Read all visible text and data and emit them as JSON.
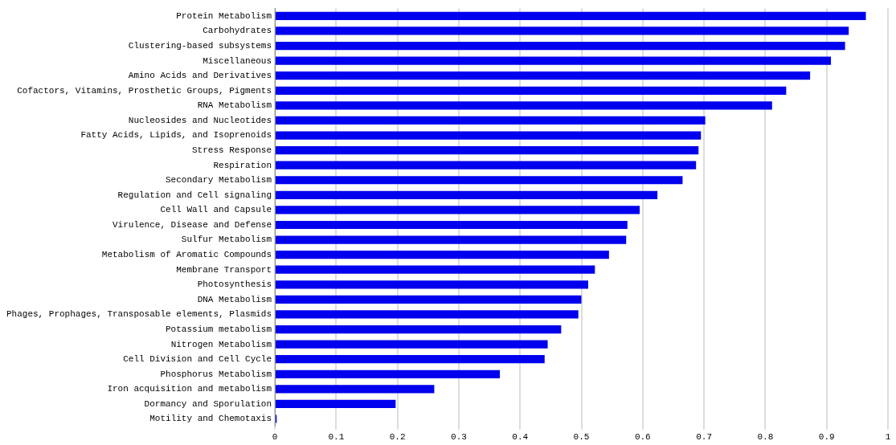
{
  "chart_data": {
    "type": "bar",
    "orientation": "horizontal",
    "categories": [
      "Protein Metabolism",
      "Carbohydrates",
      "Clustering-based subsystems",
      "Miscellaneous",
      "Amino Acids and Derivatives",
      "Cofactors, Vitamins, Prosthetic Groups, Pigments",
      "RNA Metabolism",
      "Nucleosides and Nucleotides",
      "Fatty Acids, Lipids, and Isoprenoids",
      "Stress Response",
      "Respiration",
      "Secondary Metabolism",
      "Regulation and Cell signaling",
      "Cell Wall and Capsule",
      "Virulence, Disease and Defense",
      "Sulfur Metabolism",
      "Metabolism of Aromatic Compounds",
      "Membrane Transport",
      "Photosynthesis",
      "DNA Metabolism",
      "Phages, Prophages, Transposable elements, Plasmids",
      "Potassium metabolism",
      "Nitrogen Metabolism",
      "Cell Division and Cell Cycle",
      "Phosphorus Metabolism",
      "Iron acquisition and metabolism",
      "Dormancy and Sporulation",
      "Motility and Chemotaxis"
    ],
    "values": [
      0.964,
      0.936,
      0.93,
      0.907,
      0.873,
      0.834,
      0.811,
      0.702,
      0.695,
      0.691,
      0.687,
      0.665,
      0.624,
      0.595,
      0.575,
      0.573,
      0.545,
      0.522,
      0.511,
      0.5,
      0.495,
      0.467,
      0.445,
      0.44,
      0.367,
      0.26,
      0.197,
      0.003
    ],
    "color": "#0000ee",
    "xlim": [
      0,
      1
    ],
    "xticks": [
      0,
      0.1,
      0.2,
      0.3,
      0.4,
      0.5,
      0.6,
      0.7,
      0.8,
      0.9,
      1
    ],
    "grid": "x",
    "legend": false
  }
}
